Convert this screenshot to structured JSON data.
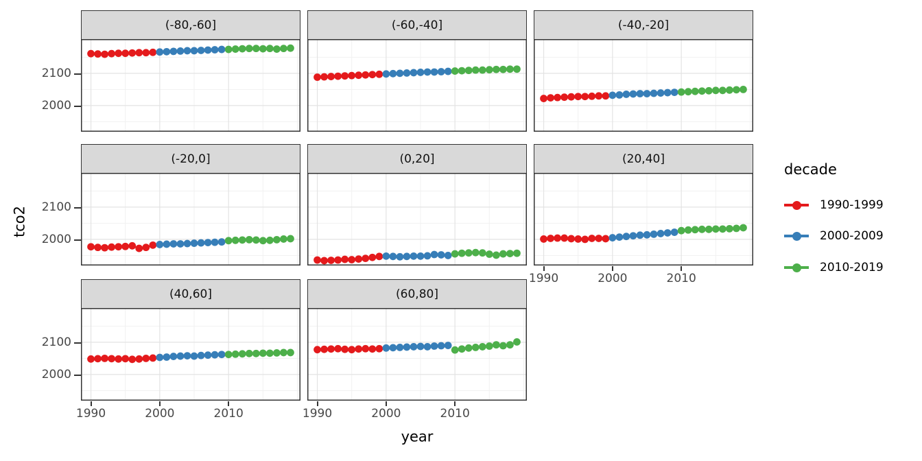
{
  "legend": {
    "title": "decade",
    "entries": [
      {
        "label": "1990-1999",
        "color": "#E41A1C"
      },
      {
        "label": "2000-2009",
        "color": "#377EB8"
      },
      {
        "label": "2010-2019",
        "color": "#4DAF4A"
      }
    ]
  },
  "chart_data": {
    "type": "scatter",
    "title": "",
    "xlabel": "year",
    "ylabel": "tco2",
    "grid": true,
    "legend_position": "right",
    "facet_layout": "3 columns x 3 rows, last cell empty",
    "x": [
      1990,
      1991,
      1992,
      1993,
      1994,
      1995,
      1996,
      1997,
      1998,
      1999,
      2000,
      2001,
      2002,
      2003,
      2004,
      2005,
      2006,
      2007,
      2008,
      2009,
      2010,
      2011,
      2012,
      2013,
      2014,
      2015,
      2016,
      2017,
      2018,
      2019
    ],
    "x_domain": [
      1988.55,
      2020.45
    ],
    "y_domain": [
      1919,
      2206
    ],
    "x_breaks": [
      1990,
      2000,
      2010
    ],
    "x_break_labels": [
      "1990",
      "2000",
      "2010"
    ],
    "x_minor_breaks": [
      1995,
      2005,
      2015,
      2020
    ],
    "y_breaks": [
      2000,
      2100
    ],
    "y_break_labels": [
      "2000",
      "2100"
    ],
    "y_minor_breaks": [
      1950,
      2050,
      2150
    ],
    "series": [
      {
        "name": "1990-1999",
        "color": "#E41A1C",
        "year_range": [
          1990,
          1999
        ]
      },
      {
        "name": "2000-2009",
        "color": "#377EB8",
        "year_range": [
          2000,
          2009
        ]
      },
      {
        "name": "2010-2019",
        "color": "#4DAF4A",
        "year_range": [
          2010,
          2019
        ]
      }
    ],
    "facets": [
      {
        "label": "(-80,-60]",
        "values": [
          2161,
          2160,
          2159,
          2161,
          2162,
          2162,
          2163,
          2164,
          2164,
          2165,
          2166,
          2167,
          2168,
          2169,
          2170,
          2170,
          2171,
          2172,
          2173,
          2174,
          2174,
          2175,
          2176,
          2177,
          2177,
          2176,
          2177,
          2175,
          2177,
          2178
        ]
      },
      {
        "label": "(-60,-40]",
        "values": [
          2088,
          2089,
          2090,
          2091,
          2092,
          2093,
          2094,
          2095,
          2096,
          2097,
          2098,
          2099,
          2100,
          2101,
          2102,
          2103,
          2104,
          2104,
          2105,
          2106,
          2107,
          2108,
          2109,
          2110,
          2110,
          2111,
          2112,
          2112,
          2113,
          2113
        ]
      },
      {
        "label": "(-40,-20]",
        "values": [
          2022,
          2024,
          2025,
          2026,
          2027,
          2028,
          2028,
          2029,
          2030,
          2030,
          2032,
          2033,
          2035,
          2036,
          2037,
          2037,
          2038,
          2039,
          2040,
          2041,
          2042,
          2043,
          2044,
          2045,
          2046,
          2047,
          2047,
          2048,
          2049,
          2050
        ]
      },
      {
        "label": "(-20,0]",
        "values": [
          1977,
          1975,
          1974,
          1976,
          1977,
          1978,
          1980,
          1972,
          1975,
          1982,
          1984,
          1985,
          1986,
          1986,
          1987,
          1988,
          1989,
          1990,
          1991,
          1992,
          1996,
          1997,
          1998,
          1999,
          1998,
          1996,
          1997,
          1999,
          2001,
          2002
        ]
      },
      {
        "label": "(0,20]",
        "values": [
          1936,
          1934,
          1935,
          1936,
          1938,
          1937,
          1939,
          1941,
          1944,
          1947,
          1948,
          1947,
          1946,
          1947,
          1948,
          1948,
          1949,
          1953,
          1952,
          1950,
          1955,
          1957,
          1958,
          1959,
          1958,
          1954,
          1951,
          1955,
          1956,
          1957
        ]
      },
      {
        "label": "(20,40]",
        "values": [
          2001,
          2003,
          2004,
          2004,
          2002,
          2001,
          2000,
          2003,
          2003,
          2002,
          2005,
          2007,
          2009,
          2011,
          2013,
          2014,
          2016,
          2018,
          2020,
          2022,
          2027,
          2029,
          2030,
          2031,
          2031,
          2032,
          2032,
          2033,
          2034,
          2036
        ]
      },
      {
        "label": "(40,60]",
        "values": [
          2048,
          2049,
          2050,
          2049,
          2048,
          2049,
          2047,
          2048,
          2050,
          2051,
          2053,
          2054,
          2056,
          2057,
          2058,
          2057,
          2059,
          2060,
          2061,
          2062,
          2062,
          2063,
          2064,
          2065,
          2065,
          2066,
          2066,
          2067,
          2068,
          2068
        ]
      },
      {
        "label": "(60,80]",
        "values": [
          2077,
          2078,
          2079,
          2080,
          2078,
          2077,
          2079,
          2080,
          2079,
          2080,
          2082,
          2083,
          2084,
          2085,
          2086,
          2087,
          2086,
          2088,
          2089,
          2090,
          2076,
          2079,
          2082,
          2084,
          2086,
          2088,
          2092,
          2089,
          2092,
          2101
        ]
      }
    ],
    "style": {
      "strip_bg": "#D9D9D9",
      "panel_border": "#333333",
      "grid_major": "#E3E3E3",
      "grid_minor": "#F1F1F1",
      "tick_label_color": "#474747",
      "point_radius": 5.4
    }
  }
}
